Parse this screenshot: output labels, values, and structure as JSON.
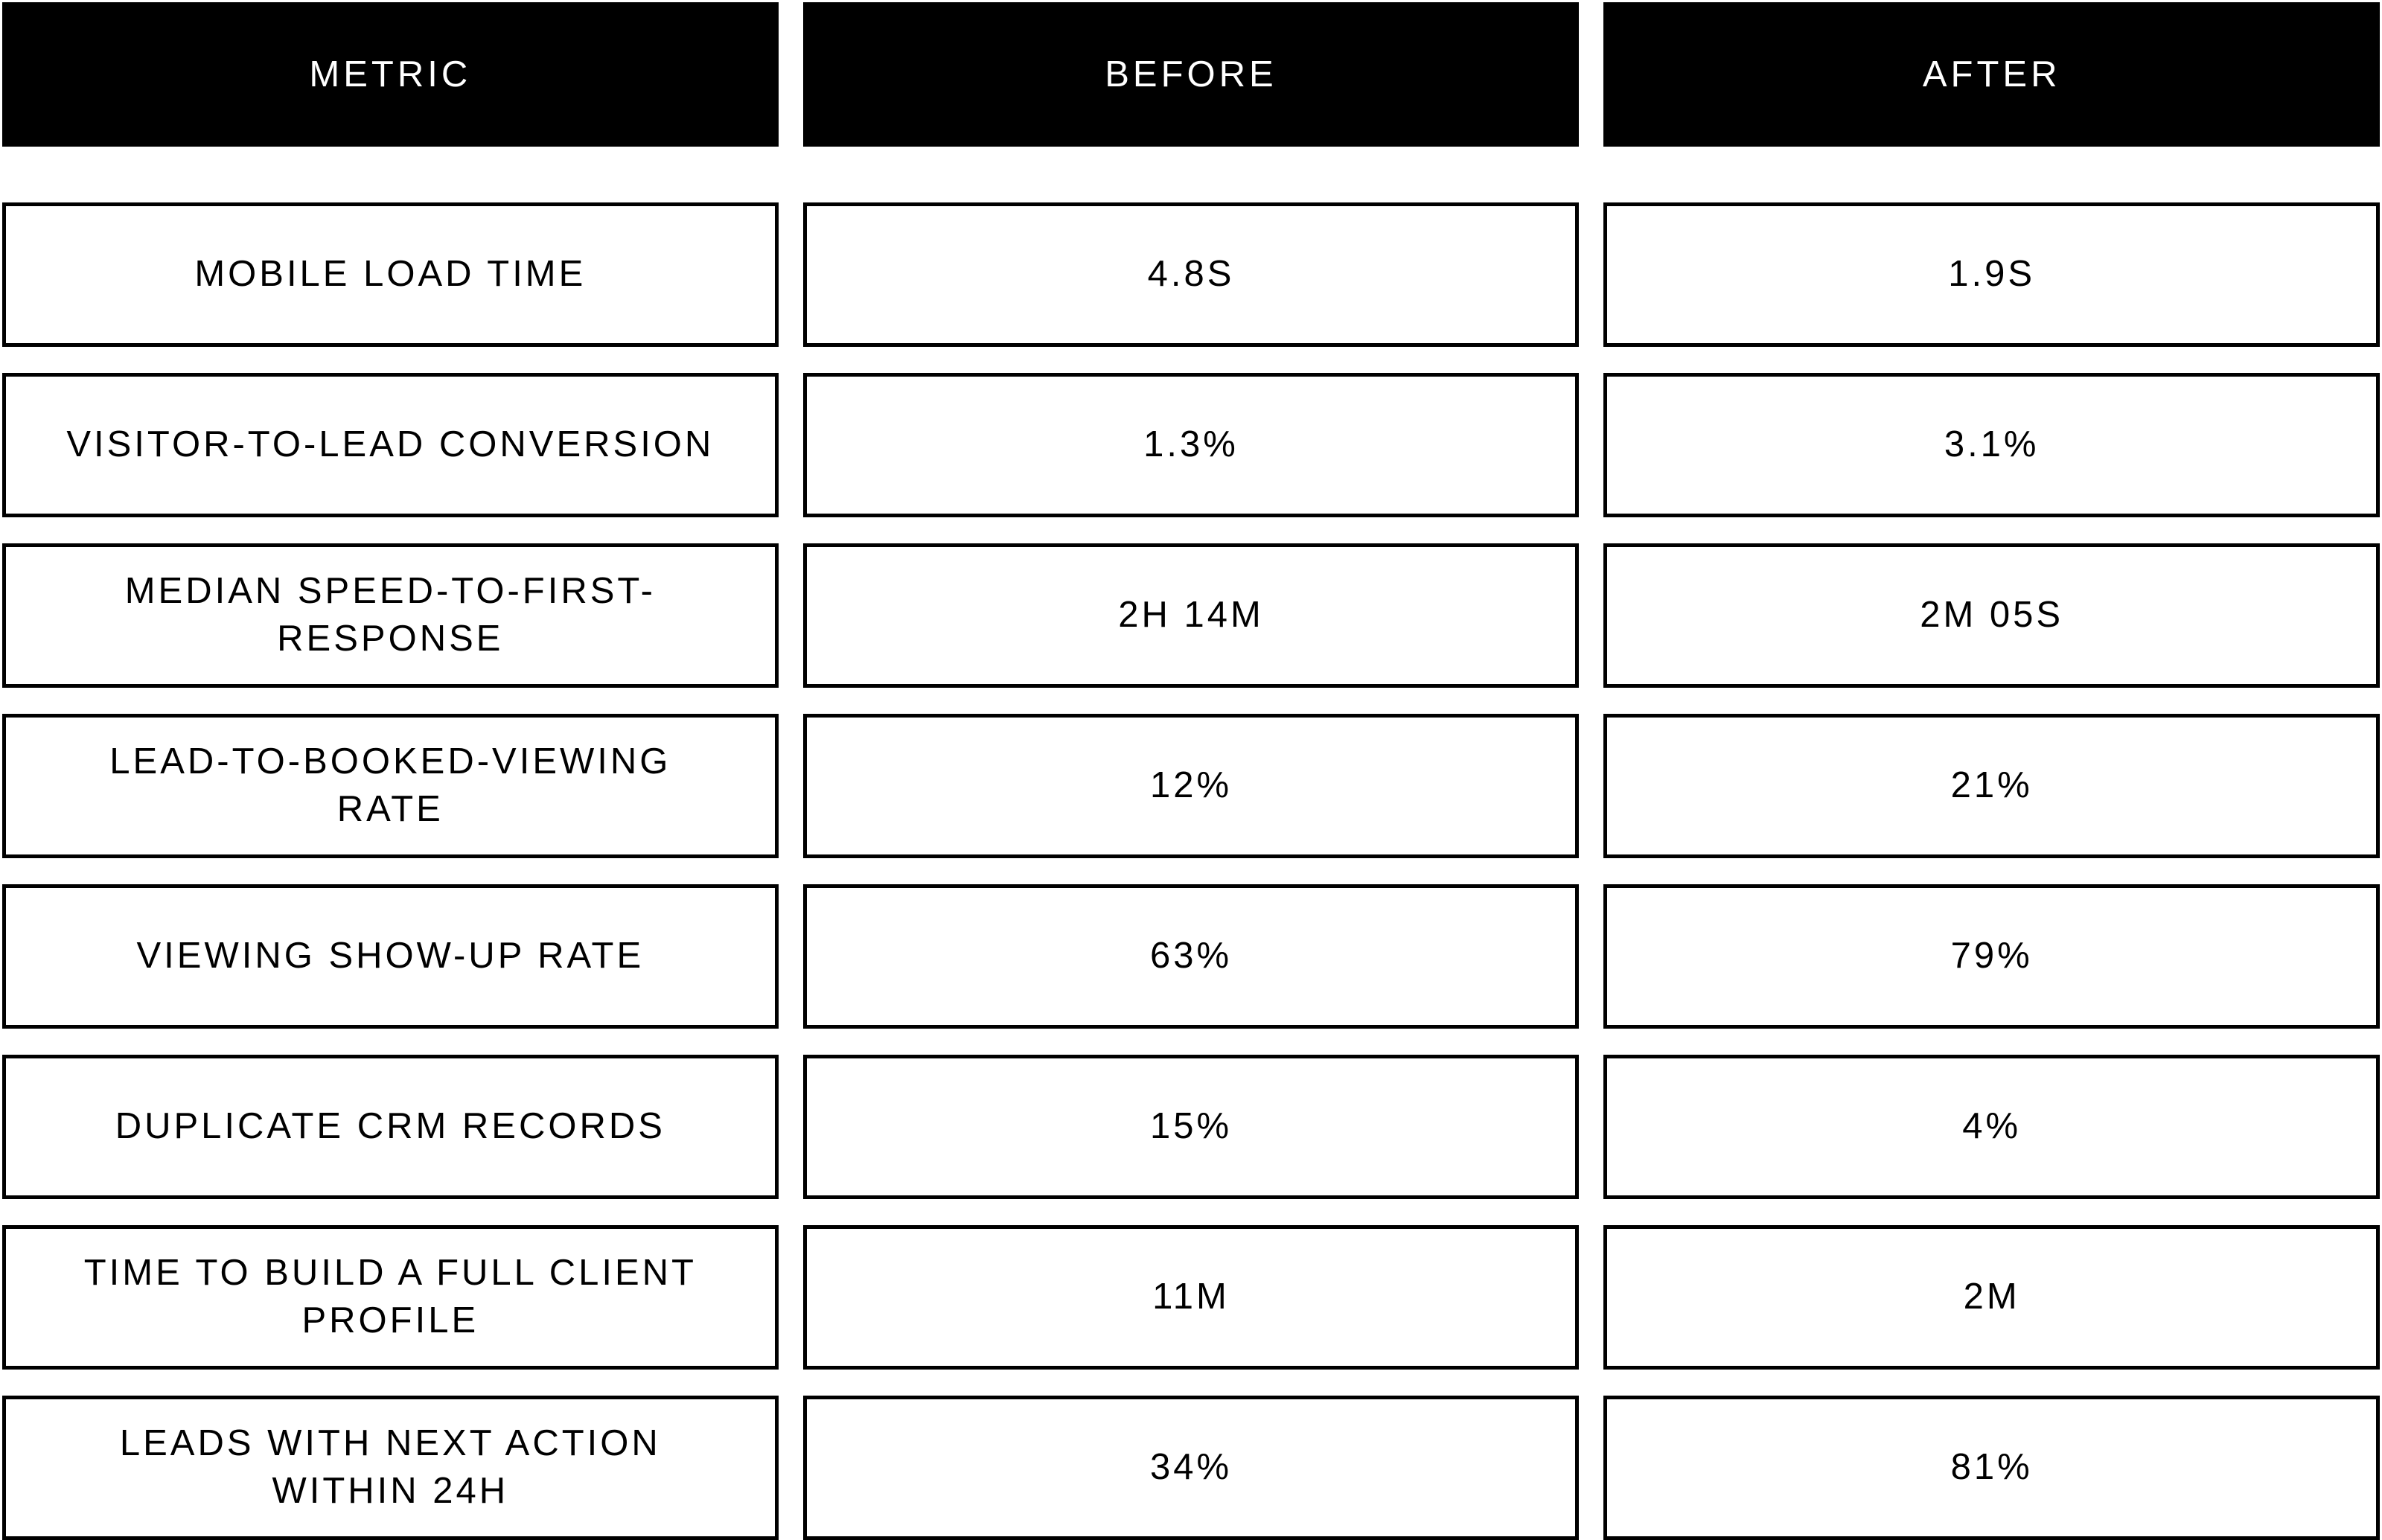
{
  "colors": {
    "background": "#ffffff",
    "header_bg": "#000000",
    "header_text": "#ffffff",
    "cell_bg": "#ffffff",
    "cell_border": "#000000",
    "cell_text": "#000000"
  },
  "chart_data": {
    "type": "table",
    "title": "",
    "columns": [
      "METRIC",
      "BEFORE",
      "AFTER"
    ],
    "rows": [
      [
        "MOBILE LOAD TIME",
        "4.8S",
        "1.9S"
      ],
      [
        "VISITOR-TO-LEAD CONVERSION",
        "1.3%",
        "3.1%"
      ],
      [
        "MEDIAN SPEED-TO-FIRST-RESPONSE",
        "2H 14M",
        "2M 05S"
      ],
      [
        "LEAD-TO-BOOKED-VIEWING RATE",
        "12%",
        "21%"
      ],
      [
        "VIEWING SHOW-UP RATE",
        "63%",
        "79%"
      ],
      [
        "DUPLICATE CRM RECORDS",
        "15%",
        "4%"
      ],
      [
        "TIME TO BUILD A FULL CLIENT PROFILE",
        "11M",
        "2M"
      ],
      [
        "LEADS WITH NEXT ACTION WITHIN 24H",
        "34%",
        "81%"
      ]
    ],
    "layout": {
      "grid": "3 columns, header row + 8 body rows",
      "header_style": "solid black fill, white uppercase letter-spaced text",
      "body_style": "white cells with thick black borders, centered uppercase text",
      "last_row_clipped_at_bottom": true
    }
  }
}
